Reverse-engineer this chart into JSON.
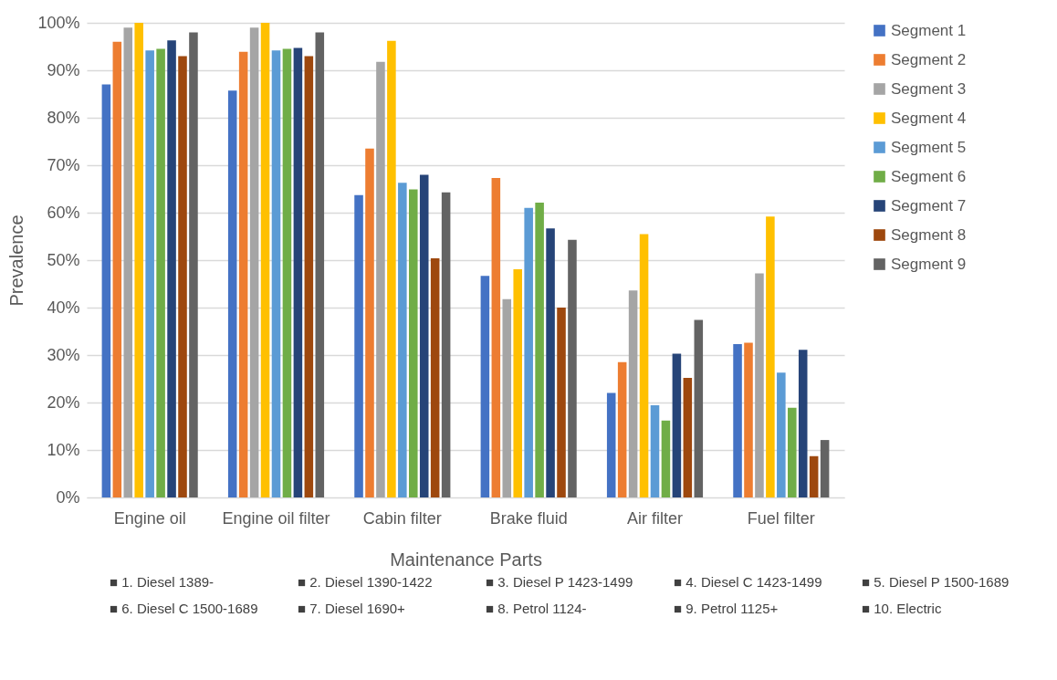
{
  "chart_data": {
    "type": "bar",
    "xlabel": "Maintenance Parts",
    "ylabel": "Prevalence",
    "categories": [
      "Engine oil",
      "Engine oil filter",
      "Cabin filter",
      "Brake fluid",
      "Air filter",
      "Fuel filter"
    ],
    "series": [
      {
        "name": "Segment 1",
        "color": "#4472c4",
        "values": [
          87,
          85.7,
          63.7,
          46.7,
          22,
          32.3
        ]
      },
      {
        "name": "Segment 2",
        "color": "#ed7d31",
        "values": [
          96,
          93.9,
          73.5,
          67.3,
          28.5,
          32.6
        ]
      },
      {
        "name": "Segment 3",
        "color": "#a5a5a5",
        "values": [
          99,
          99,
          91.8,
          41.8,
          43.6,
          47.2
        ]
      },
      {
        "name": "Segment 4",
        "color": "#ffc000",
        "values": [
          100,
          100,
          96.2,
          48.1,
          55.5,
          59.2
        ]
      },
      {
        "name": "Segment 5",
        "color": "#5b9bd5",
        "values": [
          94.2,
          94.2,
          66.3,
          61,
          19.4,
          26.3
        ]
      },
      {
        "name": "Segment 6",
        "color": "#70ad47",
        "values": [
          94.5,
          94.5,
          64.9,
          62.1,
          16.2,
          18.9
        ]
      },
      {
        "name": "Segment 7",
        "color": "#264478",
        "values": [
          96.3,
          94.7,
          68,
          56.7,
          30.3,
          31.1
        ]
      },
      {
        "name": "Segment 8",
        "color": "#9e480e",
        "values": [
          93,
          93,
          50.4,
          40,
          25.2,
          8.7
        ]
      },
      {
        "name": "Segment 9",
        "color": "#636363",
        "values": [
          98,
          98,
          64.3,
          54.3,
          37.4,
          12.1
        ]
      }
    ],
    "ylim": [
      0,
      100
    ],
    "yticks": [
      {
        "value": 0,
        "label": "0%"
      },
      {
        "value": 10,
        "label": "10%"
      },
      {
        "value": 20,
        "label": "20%"
      },
      {
        "value": 30,
        "label": "30%"
      },
      {
        "value": 40,
        "label": "40%"
      },
      {
        "value": 50,
        "label": "50%"
      },
      {
        "value": 60,
        "label": "60%"
      },
      {
        "value": 70,
        "label": "70%"
      },
      {
        "value": 80,
        "label": "80%"
      },
      {
        "value": 90,
        "label": "90%"
      },
      {
        "value": 100,
        "label": "100%"
      }
    ],
    "grid": "y",
    "legend": "right",
    "annotations": [
      "■ 1. Diesel 1389-",
      "■ 2. Diesel 1390-1422",
      "■ 3. Diesel P 1423-1499",
      "■ 4. Diesel C 1423-1499",
      "■ 5. Diesel P 1500-1689",
      "■ 6. Diesel C 1500-1689",
      "■ 7. Diesel 1690+",
      "■ 8. Petrol 1124-",
      "■ 9. Petrol 1125+",
      "■ 10. Electric"
    ]
  }
}
